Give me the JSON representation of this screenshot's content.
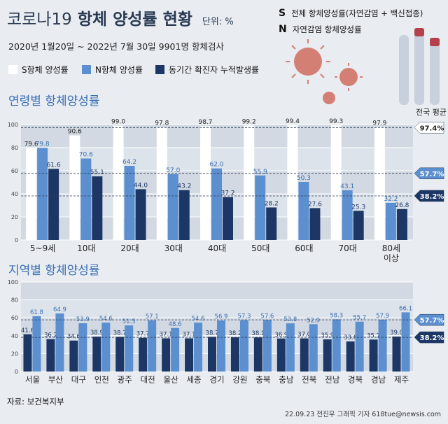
{
  "header": {
    "title_part1": "코로나19",
    "title_part2": "항체 양성률 현황",
    "unit": "단위: %",
    "subtitle": "2020년 1월20일 ~ 2022년 7월 30일 9901명 항체검사"
  },
  "notes": [
    {
      "letter": "S",
      "text": "전체 항체양성률(자연감염 + 백신접종)"
    },
    {
      "letter": "N",
      "text": "자연감염 항체양성률"
    }
  ],
  "legend": [
    {
      "label": "S항체 양성률",
      "color": "#ffffff"
    },
    {
      "label": "N항체 양성률",
      "color": "#5b8fcf"
    },
    {
      "label": "동기간 확진자 누적발생률",
      "color": "#1c3766"
    }
  ],
  "source": "자료: 보건복지부",
  "credit": "22.09.23 전진우 그래픽 기자 618tue@newsis.com",
  "chart_data": [
    {
      "type": "bar",
      "title": "연령별 항체양성률",
      "ylim": [
        0,
        100
      ],
      "yticks": [
        0,
        20,
        40,
        60,
        80,
        100
      ],
      "categories": [
        "5~9세",
        "10대",
        "20대",
        "30대",
        "40대",
        "50대",
        "60대",
        "70대",
        "80세 이상"
      ],
      "series": [
        {
          "name": "S항체 양성률",
          "color": "#ffffff",
          "values": [
            79.6,
            90.6,
            99.0,
            97.8,
            98.7,
            99.2,
            99.4,
            99.3,
            97.9
          ]
        },
        {
          "name": "N항체 양성률",
          "color": "#5b8fcf",
          "values": [
            79.8,
            70.6,
            64.2,
            57.0,
            62.0,
            55.9,
            50.3,
            43.1,
            32.2
          ]
        },
        {
          "name": "동기간 확진자 누적발생률",
          "color": "#1c3766",
          "values": [
            61.6,
            55.1,
            44.0,
            43.2,
            37.2,
            28.2,
            27.6,
            25.3,
            26.8
          ]
        }
      ],
      "reference_title": "전국 평균",
      "reference_lines": [
        {
          "value": 97.4,
          "label": "97.4%",
          "fill": "#ffffff",
          "color": "#222222"
        },
        {
          "value": 57.7,
          "label": "57.7%",
          "fill": "#5b8fcf",
          "color": "#ffffff"
        },
        {
          "value": 38.2,
          "label": "38.2%",
          "fill": "#1c3766",
          "color": "#ffffff"
        }
      ],
      "grid": true
    },
    {
      "type": "bar",
      "title": "지역별 항체양성률",
      "ylim": [
        0,
        100
      ],
      "yticks": [
        0,
        20,
        40,
        60,
        80,
        100
      ],
      "categories": [
        "서울",
        "부산",
        "대구",
        "인천",
        "광주",
        "대전",
        "울산",
        "세종",
        "경기",
        "강원",
        "충북",
        "충남",
        "전북",
        "전남",
        "경북",
        "경남",
        "제주"
      ],
      "series": [
        {
          "name": "동기간 확진자 누적발생률",
          "color": "#1c3766",
          "values": [
            41.6,
            36.2,
            34.6,
            38.9,
            38.7,
            37.7,
            37.1,
            37.1,
            38.7,
            38.2,
            38.1,
            36.9,
            37.0,
            35.9,
            33.6,
            35.7,
            39.0
          ]
        },
        {
          "name": "N항체 양성률",
          "color": "#5b8fcf",
          "values": [
            61.8,
            64.9,
            53.9,
            54.6,
            51.5,
            57.1,
            48.6,
            54.6,
            56.9,
            57.3,
            57.6,
            53.8,
            52.9,
            58.3,
            55.7,
            57.9,
            66.1
          ]
        }
      ],
      "reference_lines": [
        {
          "value": 57.7,
          "label": "57.7%",
          "fill": "#5b8fcf",
          "color": "#ffffff"
        },
        {
          "value": 38.2,
          "label": "38.2%",
          "fill": "#1c3766",
          "color": "#ffffff"
        }
      ],
      "grid": true
    }
  ]
}
